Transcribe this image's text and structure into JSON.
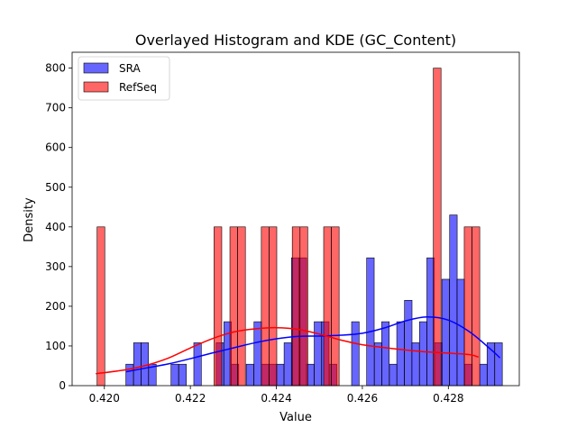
{
  "chart_data": {
    "type": "histogram",
    "title": "Overlayed Histogram and KDE (GC_Content)",
    "xlabel": "Value",
    "ylabel": "Density",
    "xlim": [
      0.41925,
      0.42965
    ],
    "ylim": [
      0,
      840
    ],
    "xticks": [
      0.42,
      0.422,
      0.424,
      0.426,
      0.428
    ],
    "xtick_labels": [
      "0.420",
      "0.422",
      "0.424",
      "0.426",
      "0.428"
    ],
    "yticks": [
      0,
      100,
      200,
      300,
      400,
      500,
      600,
      700,
      800
    ],
    "ytick_labels": [
      "0",
      "100",
      "200",
      "300",
      "400",
      "500",
      "600",
      "700",
      "800"
    ],
    "grid": false,
    "legend": "top-left",
    "series": [
      {
        "name": "SRA",
        "color": "#0000ff",
        "bin_width": 0.000175,
        "bins": [
          {
            "x0": 0.4205,
            "value": 54
          },
          {
            "x0": 0.42068,
            "value": 108
          },
          {
            "x0": 0.42085,
            "value": 108
          },
          {
            "x0": 0.42103,
            "value": 54
          },
          {
            "x0": 0.42155,
            "value": 54
          },
          {
            "x0": 0.42173,
            "value": 54
          },
          {
            "x0": 0.42208,
            "value": 108
          },
          {
            "x0": 0.4226,
            "value": 108
          },
          {
            "x0": 0.42278,
            "value": 161
          },
          {
            "x0": 0.42295,
            "value": 54
          },
          {
            "x0": 0.4233,
            "value": 54
          },
          {
            "x0": 0.42348,
            "value": 161
          },
          {
            "x0": 0.42365,
            "value": 54
          },
          {
            "x0": 0.42383,
            "value": 54
          },
          {
            "x0": 0.424,
            "value": 54
          },
          {
            "x0": 0.42418,
            "value": 108
          },
          {
            "x0": 0.42435,
            "value": 322
          },
          {
            "x0": 0.42453,
            "value": 322
          },
          {
            "x0": 0.4247,
            "value": 54
          },
          {
            "x0": 0.42488,
            "value": 161
          },
          {
            "x0": 0.42505,
            "value": 161
          },
          {
            "x0": 0.42523,
            "value": 54
          },
          {
            "x0": 0.42575,
            "value": 161
          },
          {
            "x0": 0.4261,
            "value": 322
          },
          {
            "x0": 0.42628,
            "value": 108
          },
          {
            "x0": 0.42645,
            "value": 161
          },
          {
            "x0": 0.42663,
            "value": 54
          },
          {
            "x0": 0.4268,
            "value": 161
          },
          {
            "x0": 0.42698,
            "value": 215
          },
          {
            "x0": 0.42715,
            "value": 108
          },
          {
            "x0": 0.42733,
            "value": 161
          },
          {
            "x0": 0.4275,
            "value": 322
          },
          {
            "x0": 0.42768,
            "value": 108
          },
          {
            "x0": 0.42785,
            "value": 268
          },
          {
            "x0": 0.42803,
            "value": 430
          },
          {
            "x0": 0.4282,
            "value": 268
          },
          {
            "x0": 0.42838,
            "value": 54
          },
          {
            "x0": 0.42873,
            "value": 54
          },
          {
            "x0": 0.4289,
            "value": 108
          },
          {
            "x0": 0.42908,
            "value": 108
          }
        ],
        "kde": {
          "x": [
            0.4205,
            0.421,
            0.4215,
            0.422,
            0.4225,
            0.423,
            0.4235,
            0.424,
            0.4245,
            0.425,
            0.4255,
            0.426,
            0.4265,
            0.427,
            0.4275,
            0.428,
            0.4285,
            0.429,
            0.4292
          ],
          "y": [
            35,
            45,
            55,
            68,
            82,
            95,
            108,
            118,
            124,
            125,
            127,
            132,
            145,
            163,
            173,
            165,
            135,
            90,
            70
          ]
        }
      },
      {
        "name": "RefSeq",
        "color": "#ff0000",
        "bin_width": 0.00018,
        "bins": [
          {
            "x0": 0.41983,
            "value": 400
          },
          {
            "x0": 0.42255,
            "value": 400
          },
          {
            "x0": 0.42292,
            "value": 400
          },
          {
            "x0": 0.4231,
            "value": 400
          },
          {
            "x0": 0.42365,
            "value": 400
          },
          {
            "x0": 0.42383,
            "value": 400
          },
          {
            "x0": 0.42437,
            "value": 400
          },
          {
            "x0": 0.42455,
            "value": 400
          },
          {
            "x0": 0.4251,
            "value": 400
          },
          {
            "x0": 0.42528,
            "value": 400
          },
          {
            "x0": 0.42765,
            "value": 800
          },
          {
            "x0": 0.42837,
            "value": 400
          },
          {
            "x0": 0.42855,
            "value": 400
          }
        ],
        "kde": {
          "x": [
            0.4198,
            0.4205,
            0.421,
            0.4215,
            0.422,
            0.4225,
            0.423,
            0.4235,
            0.424,
            0.4245,
            0.425,
            0.4255,
            0.426,
            0.4265,
            0.427,
            0.4275,
            0.428,
            0.4285,
            0.4287
          ],
          "y": [
            30,
            40,
            52,
            70,
            95,
            118,
            135,
            143,
            146,
            142,
            130,
            115,
            103,
            96,
            90,
            85,
            82,
            78,
            72
          ]
        }
      }
    ]
  }
}
